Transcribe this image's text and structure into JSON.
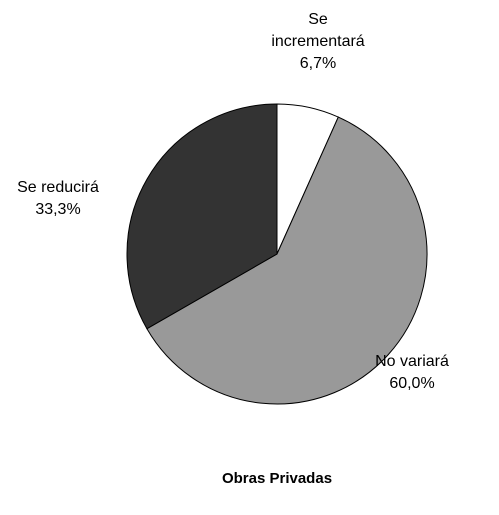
{
  "chart_data": {
    "type": "pie",
    "title": "Obras Privadas",
    "categories": [
      "Se incrementará",
      "No variará",
      "Se reducirá"
    ],
    "values": [
      6.7,
      60.0,
      33.3
    ],
    "value_labels": [
      "6,7%",
      "60,0%",
      "33,3%"
    ],
    "colors": [
      "#ffffff",
      "#999999",
      "#333333"
    ]
  }
}
